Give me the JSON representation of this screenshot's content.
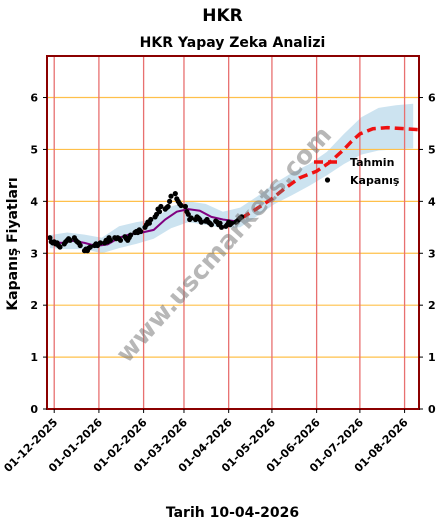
{
  "suptitle": "HKR",
  "chart_data": {
    "type": "line",
    "title": "HKR Yapay Zeka Analizi",
    "xlabel": "Tarih 10-04-2026",
    "ylabel": "Kapanış Fiyatları",
    "xlim": [
      "2025-11-26",
      "2026-08-11"
    ],
    "ylim": [
      0,
      6.8
    ],
    "x_ticks": [
      "01-12-2025",
      "01-01-2026",
      "01-02-2026",
      "01-03-2026",
      "01-04-2026",
      "01-05-2026",
      "01-06-2026",
      "01-07-2026",
      "01-08-2026"
    ],
    "y_ticks": [
      0,
      1,
      2,
      3,
      4,
      5,
      6
    ],
    "grid": true,
    "legend": {
      "placement": "right",
      "entries": [
        "Tahmin",
        "Kapanış"
      ]
    },
    "watermark": "www.uscmarkets.com",
    "colors": {
      "forecast": "#ee1111",
      "closing": "#000000",
      "fit": "#800080",
      "band": "#9ac8e2",
      "hgrid": "#ffc04a",
      "vgrid": "#e87070",
      "frame": "#8b0000"
    },
    "series": [
      {
        "name": "Kapanış",
        "style": "scatter",
        "x": [
          "2025-11-28",
          "2025-11-29",
          "2025-11-30",
          "2025-12-01",
          "2025-12-02",
          "2025-12-03",
          "2025-12-04",
          "2025-12-05",
          "2025-12-08",
          "2025-12-09",
          "2025-12-10",
          "2025-12-11",
          "2025-12-12",
          "2025-12-15",
          "2025-12-16",
          "2025-12-17",
          "2025-12-18",
          "2025-12-19",
          "2025-12-22",
          "2025-12-23",
          "2025-12-24",
          "2025-12-25",
          "2025-12-26",
          "2025-12-29",
          "2025-12-30",
          "2025-12-31",
          "2026-01-02",
          "2026-01-05",
          "2026-01-06",
          "2026-01-07",
          "2026-01-08",
          "2026-01-09",
          "2026-01-12",
          "2026-01-13",
          "2026-01-14",
          "2026-01-15",
          "2026-01-16",
          "2026-01-19",
          "2026-01-20",
          "2026-01-21",
          "2026-01-22",
          "2026-01-23",
          "2026-01-26",
          "2026-01-27",
          "2026-01-28",
          "2026-01-29",
          "2026-01-30",
          "2026-02-02",
          "2026-02-03",
          "2026-02-04",
          "2026-02-05",
          "2026-02-06",
          "2026-02-09",
          "2026-02-10",
          "2026-02-11",
          "2026-02-12",
          "2026-02-13",
          "2026-02-16",
          "2026-02-17",
          "2026-02-18",
          "2026-02-19",
          "2026-02-20",
          "2026-02-23",
          "2026-02-24",
          "2026-02-25",
          "2026-02-26",
          "2026-02-27",
          "2026-03-02",
          "2026-03-03",
          "2026-03-04",
          "2026-03-05",
          "2026-03-06",
          "2026-03-09",
          "2026-03-10",
          "2026-03-11",
          "2026-03-12",
          "2026-03-13",
          "2026-03-16",
          "2026-03-17",
          "2026-03-18",
          "2026-03-19",
          "2026-03-20",
          "2026-03-23",
          "2026-03-24",
          "2026-03-25",
          "2026-03-26",
          "2026-03-27",
          "2026-03-30",
          "2026-03-31",
          "2026-04-01",
          "2026-04-02",
          "2026-04-03",
          "2026-04-06",
          "2026-04-07",
          "2026-04-08",
          "2026-04-09",
          "2026-04-10"
        ],
        "y": [
          3.3,
          3.22,
          3.2,
          3.22,
          3.18,
          3.2,
          3.15,
          3.12,
          3.18,
          3.22,
          3.25,
          3.28,
          3.25,
          3.3,
          3.25,
          3.22,
          3.2,
          3.15,
          3.05,
          3.08,
          3.05,
          3.1,
          3.12,
          3.15,
          3.18,
          3.15,
          3.2,
          3.2,
          3.25,
          3.22,
          3.3,
          3.25,
          3.3,
          3.28,
          3.3,
          3.28,
          3.25,
          3.32,
          3.28,
          3.25,
          3.3,
          3.35,
          3.4,
          3.42,
          3.4,
          3.45,
          3.42,
          3.5,
          3.55,
          3.6,
          3.58,
          3.65,
          3.7,
          3.75,
          3.85,
          3.8,
          3.9,
          3.85,
          3.88,
          3.9,
          4.0,
          4.1,
          4.15,
          4.05,
          4.0,
          3.95,
          3.92,
          3.9,
          3.8,
          3.75,
          3.65,
          3.68,
          3.65,
          3.7,
          3.68,
          3.65,
          3.6,
          3.62,
          3.65,
          3.6,
          3.58,
          3.55,
          3.62,
          3.6,
          3.55,
          3.58,
          3.5,
          3.52,
          3.55,
          3.6,
          3.55,
          3.58,
          3.6,
          3.62,
          3.65,
          3.68,
          3.7
        ]
      },
      {
        "name": "",
        "style": "fit",
        "x": [
          "2025-11-28",
          "2025-12-06",
          "2025-12-14",
          "2025-12-22",
          "2025-12-30",
          "2026-01-07",
          "2026-01-15",
          "2026-01-23",
          "2026-01-31",
          "2026-02-08",
          "2026-02-16",
          "2026-02-24",
          "2026-03-04",
          "2026-03-12",
          "2026-03-20",
          "2026-03-28",
          "2026-04-05",
          "2026-04-10"
        ],
        "y": [
          3.22,
          3.2,
          3.24,
          3.2,
          3.14,
          3.17,
          3.3,
          3.37,
          3.4,
          3.45,
          3.65,
          3.8,
          3.85,
          3.82,
          3.7,
          3.65,
          3.62,
          3.68
        ]
      },
      {
        "name": "",
        "style": "band",
        "x": [
          "2025-11-28",
          "2025-12-10",
          "2025-12-22",
          "2026-01-03",
          "2026-01-15",
          "2026-01-27",
          "2026-02-08",
          "2026-02-20",
          "2026-03-04",
          "2026-03-16",
          "2026-03-28",
          "2026-04-09",
          "2026-04-21",
          "2026-05-03",
          "2026-05-15",
          "2026-05-27",
          "2026-06-08",
          "2026-06-20",
          "2026-07-02",
          "2026-07-14",
          "2026-07-26",
          "2026-08-07"
        ],
        "upper": [
          3.35,
          3.4,
          3.36,
          3.3,
          3.52,
          3.6,
          3.65,
          3.9,
          4.0,
          3.95,
          3.8,
          3.88,
          4.1,
          4.35,
          4.55,
          4.72,
          4.95,
          5.3,
          5.62,
          5.8,
          5.85,
          5.88
        ],
        "lower": [
          3.1,
          3.08,
          3.08,
          3.0,
          3.1,
          3.18,
          3.28,
          3.48,
          3.6,
          3.55,
          3.48,
          3.5,
          3.72,
          3.95,
          4.12,
          4.3,
          4.5,
          4.72,
          4.9,
          4.98,
          5.0,
          5.02
        ]
      },
      {
        "name": "Tahmin",
        "style": "dashed",
        "x": [
          "2026-04-10",
          "2026-04-20",
          "2026-05-01",
          "2026-05-10",
          "2026-05-20",
          "2026-06-01",
          "2026-06-10",
          "2026-06-20",
          "2026-06-25",
          "2026-07-01",
          "2026-07-10",
          "2026-07-20",
          "2026-08-01",
          "2026-08-11"
        ],
        "y": [
          3.68,
          3.85,
          4.05,
          4.25,
          4.45,
          4.58,
          4.75,
          5.0,
          5.15,
          5.3,
          5.4,
          5.42,
          5.4,
          5.38
        ]
      }
    ]
  }
}
